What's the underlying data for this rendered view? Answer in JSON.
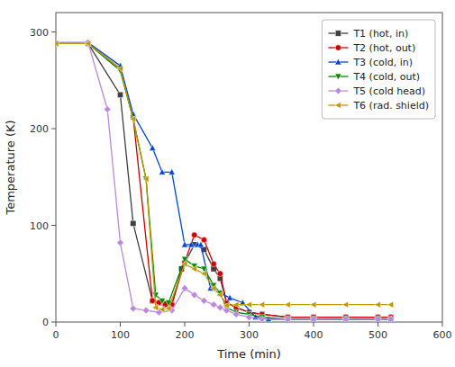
{
  "chart_data": {
    "type": "line",
    "xlabel": "Time (min)",
    "ylabel": "Temperature (K)",
    "xlim": [
      0,
      600
    ],
    "ylim": [
      0,
      320
    ],
    "xticks": [
      0,
      100,
      200,
      300,
      400,
      500,
      600
    ],
    "yticks": [
      0,
      100,
      200,
      300
    ],
    "grid": false,
    "legend": "upper right",
    "series": [
      {
        "name": "T1 (hot, in)",
        "color": "#404040",
        "marker": "square",
        "x": [
          0,
          50,
          100,
          120,
          150,
          160,
          170,
          180,
          195,
          215,
          230,
          245,
          255,
          265,
          280,
          300,
          320,
          360,
          400,
          450,
          500,
          520
        ],
        "values": [
          288,
          288,
          235,
          102,
          22,
          20,
          18,
          18,
          55,
          80,
          75,
          55,
          45,
          20,
          15,
          10,
          8,
          5,
          5,
          5,
          5,
          5
        ]
      },
      {
        "name": "T2 (hot, out)",
        "color": "#cc0000",
        "marker": "circle",
        "x": [
          0,
          50,
          100,
          120,
          150,
          160,
          170,
          180,
          200,
          215,
          230,
          245,
          255,
          265,
          280,
          300,
          320,
          360,
          400,
          450,
          500,
          520
        ],
        "values": [
          288,
          288,
          262,
          212,
          22,
          20,
          18,
          18,
          62,
          90,
          85,
          60,
          50,
          20,
          15,
          10,
          8,
          5,
          5,
          5,
          5,
          5
        ]
      },
      {
        "name": "T3 (cold, in)",
        "color": "#0044cc",
        "marker": "triangle-up",
        "x": [
          0,
          50,
          100,
          120,
          150,
          165,
          180,
          200,
          210,
          220,
          225,
          240,
          255,
          270,
          290,
          310,
          330,
          360,
          400,
          450,
          500,
          520
        ],
        "values": [
          289,
          289,
          265,
          215,
          180,
          155,
          155,
          80,
          80,
          80,
          80,
          35,
          30,
          25,
          20,
          5,
          3,
          3,
          3,
          3,
          3,
          3
        ]
      },
      {
        "name": "T4 (cold, out)",
        "color": "#008800",
        "marker": "triangle-down",
        "x": [
          0,
          50,
          100,
          120,
          140,
          155,
          165,
          175,
          200,
          215,
          230,
          245,
          255,
          265,
          280,
          300,
          320,
          360,
          400,
          450,
          500,
          520
        ],
        "values": [
          288,
          288,
          260,
          210,
          148,
          28,
          22,
          20,
          65,
          58,
          55,
          38,
          30,
          15,
          10,
          8,
          5,
          3,
          3,
          3,
          3,
          3
        ]
      },
      {
        "name": "T5 (cold head)",
        "color": "#bb88dd",
        "marker": "diamond",
        "x": [
          0,
          50,
          80,
          100,
          120,
          140,
          160,
          180,
          200,
          215,
          230,
          245,
          255,
          265,
          280,
          300,
          320,
          360,
          400,
          450,
          500,
          520
        ],
        "values": [
          289,
          289,
          220,
          82,
          14,
          12,
          10,
          12,
          35,
          28,
          22,
          18,
          15,
          12,
          8,
          5,
          3,
          3,
          3,
          3,
          3,
          3
        ]
      },
      {
        "name": "T6 (rad. shield)",
        "color": "#bb9900",
        "marker": "triangle-left",
        "x": [
          0,
          50,
          100,
          120,
          140,
          155,
          165,
          175,
          200,
          215,
          230,
          245,
          255,
          265,
          280,
          300,
          320,
          360,
          400,
          450,
          500,
          520
        ],
        "values": [
          288,
          288,
          262,
          210,
          148,
          15,
          13,
          14,
          60,
          55,
          50,
          35,
          28,
          17,
          18,
          18,
          18,
          18,
          18,
          18,
          18,
          18
        ]
      }
    ]
  }
}
